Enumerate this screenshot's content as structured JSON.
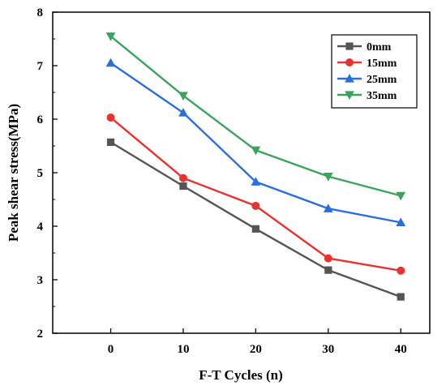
{
  "chart_data": {
    "type": "line",
    "title": "",
    "xlabel": "F-T Cycles (n)",
    "ylabel": "Peak shear stress(MPa)",
    "x": [
      0,
      10,
      20,
      30,
      40
    ],
    "x_tick_labels": [
      "0",
      "10",
      "20",
      "30",
      "40"
    ],
    "y_tick_labels": [
      "2",
      "3",
      "4",
      "5",
      "6",
      "7",
      "8"
    ],
    "xlim": [
      -8,
      44
    ],
    "ylim": [
      2,
      8
    ],
    "grid": false,
    "legend_position": "top-right",
    "series": [
      {
        "name": "0mm",
        "color": "#555555",
        "marker": "square",
        "values": [
          5.57,
          4.75,
          3.95,
          3.18,
          2.68
        ]
      },
      {
        "name": "15mm",
        "color": "#e8322e",
        "marker": "circle",
        "values": [
          6.03,
          4.9,
          4.38,
          3.4,
          3.17
        ]
      },
      {
        "name": "25mm",
        "color": "#2a6fdb",
        "marker": "triangle-up",
        "values": [
          7.05,
          6.12,
          4.83,
          4.33,
          4.07
        ]
      },
      {
        "name": "35mm",
        "color": "#3aa35d",
        "marker": "triangle-down",
        "values": [
          7.55,
          6.44,
          5.42,
          4.93,
          4.57
        ]
      }
    ]
  }
}
